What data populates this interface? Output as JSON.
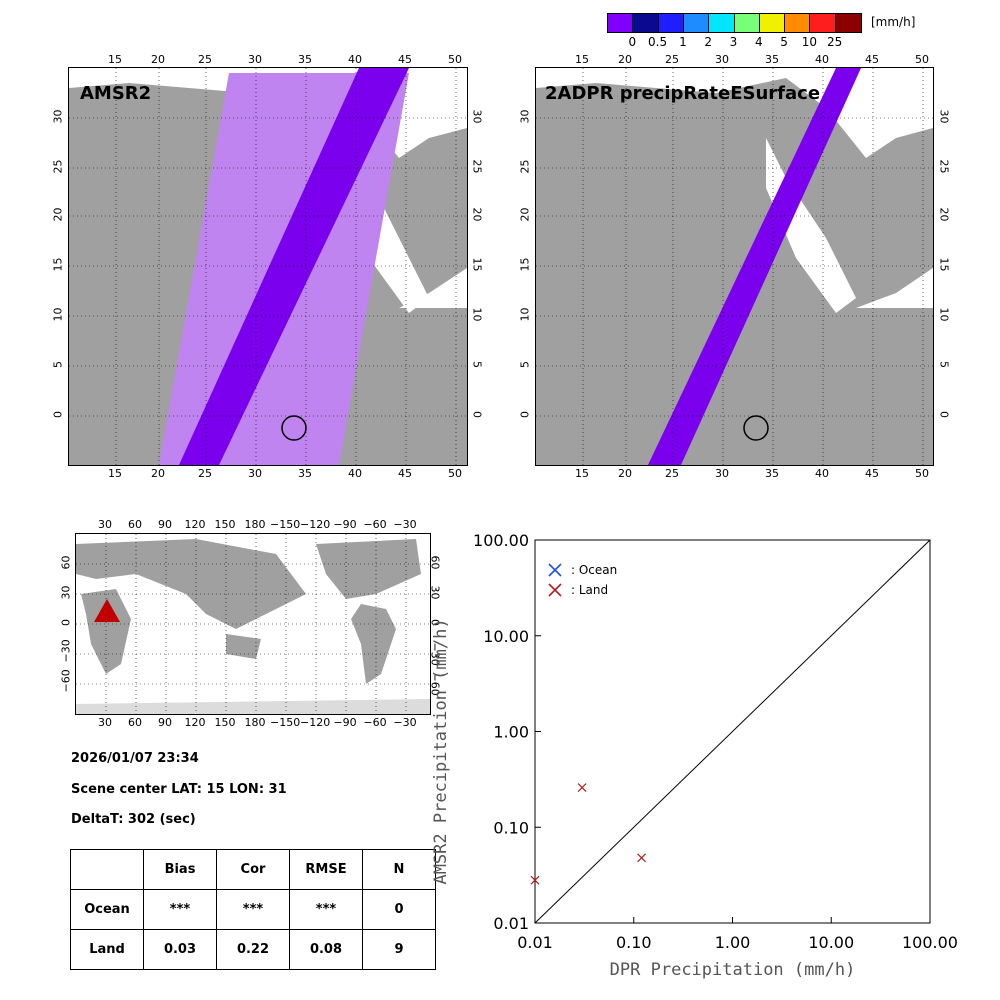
{
  "colorbar": {
    "unit": "[mm/h]",
    "labels": [
      "0",
      "0.5",
      "1",
      "2",
      "3",
      "4",
      "5",
      "10",
      "25"
    ],
    "colors": [
      "#8000ff",
      "#0a0a90",
      "#1e1eff",
      "#1e8cff",
      "#00e6ff",
      "#78ff78",
      "#f0f000",
      "#ff8c00",
      "#ff1e1e",
      "#8c0000"
    ]
  },
  "panels": {
    "amsr2_title": "AMSR2",
    "dpr_title": "2ADPR precipRateESurface",
    "lon_ticks": [
      "15",
      "20",
      "25",
      "30",
      "35",
      "40",
      "45",
      "50"
    ],
    "lat_ticks": [
      "30",
      "25",
      "20",
      "15",
      "10",
      "5",
      "0"
    ],
    "swath_color": "#7a00ee",
    "wide_swath_color": "#c084f0"
  },
  "world_map": {
    "lon_ticks": [
      "30",
      "60",
      "90",
      "120",
      "150",
      "180",
      "−150",
      "−120",
      "−90",
      "−60",
      "−30"
    ],
    "lat_ticks": [
      "60",
      "30",
      "0",
      "−30",
      "−60"
    ],
    "marker_color": "#c00000"
  },
  "info": {
    "datetime": "2026/01/07 23:34",
    "scene_center": "Scene center LAT: 15   LON:  31",
    "delta_t": "DeltaT:  302 (sec)"
  },
  "stats_table": {
    "headers": [
      "",
      "Bias",
      "Cor",
      "RMSE",
      "N"
    ],
    "rows": [
      {
        "label": "Ocean",
        "bias": "***",
        "cor": "***",
        "rmse": "***",
        "n": "0"
      },
      {
        "label": "Land",
        "bias": "0.03",
        "cor": "0.22",
        "rmse": "0.08",
        "n": "9"
      }
    ]
  },
  "chart_data": {
    "type": "scatter",
    "xlabel": "DPR Precipitation (mm/h)",
    "ylabel": "AMSR2 Precipitation (mm/h)",
    "xscale": "log",
    "yscale": "log",
    "xlim": [
      0.01,
      100
    ],
    "ylim": [
      0.01,
      100
    ],
    "x_ticks": [
      "0.01",
      "0.10",
      "1.00",
      "10.00",
      "100.00"
    ],
    "y_ticks": [
      "100.00",
      "10.00",
      "1.00",
      "0.10",
      "0.01"
    ],
    "legend": [
      {
        "label": ": Ocean",
        "color": "#1e50e6"
      },
      {
        "label": ": Land",
        "color": "#b41e1e"
      }
    ],
    "legend_position": "top-left",
    "series": [
      {
        "name": "Land",
        "color": "#b41e1e",
        "points": [
          [
            0.01,
            0.028
          ],
          [
            0.03,
            0.26
          ],
          [
            0.12,
            0.048
          ]
        ]
      },
      {
        "name": "Ocean",
        "color": "#1e50e6",
        "points": []
      }
    ],
    "one_to_one_line": true
  }
}
